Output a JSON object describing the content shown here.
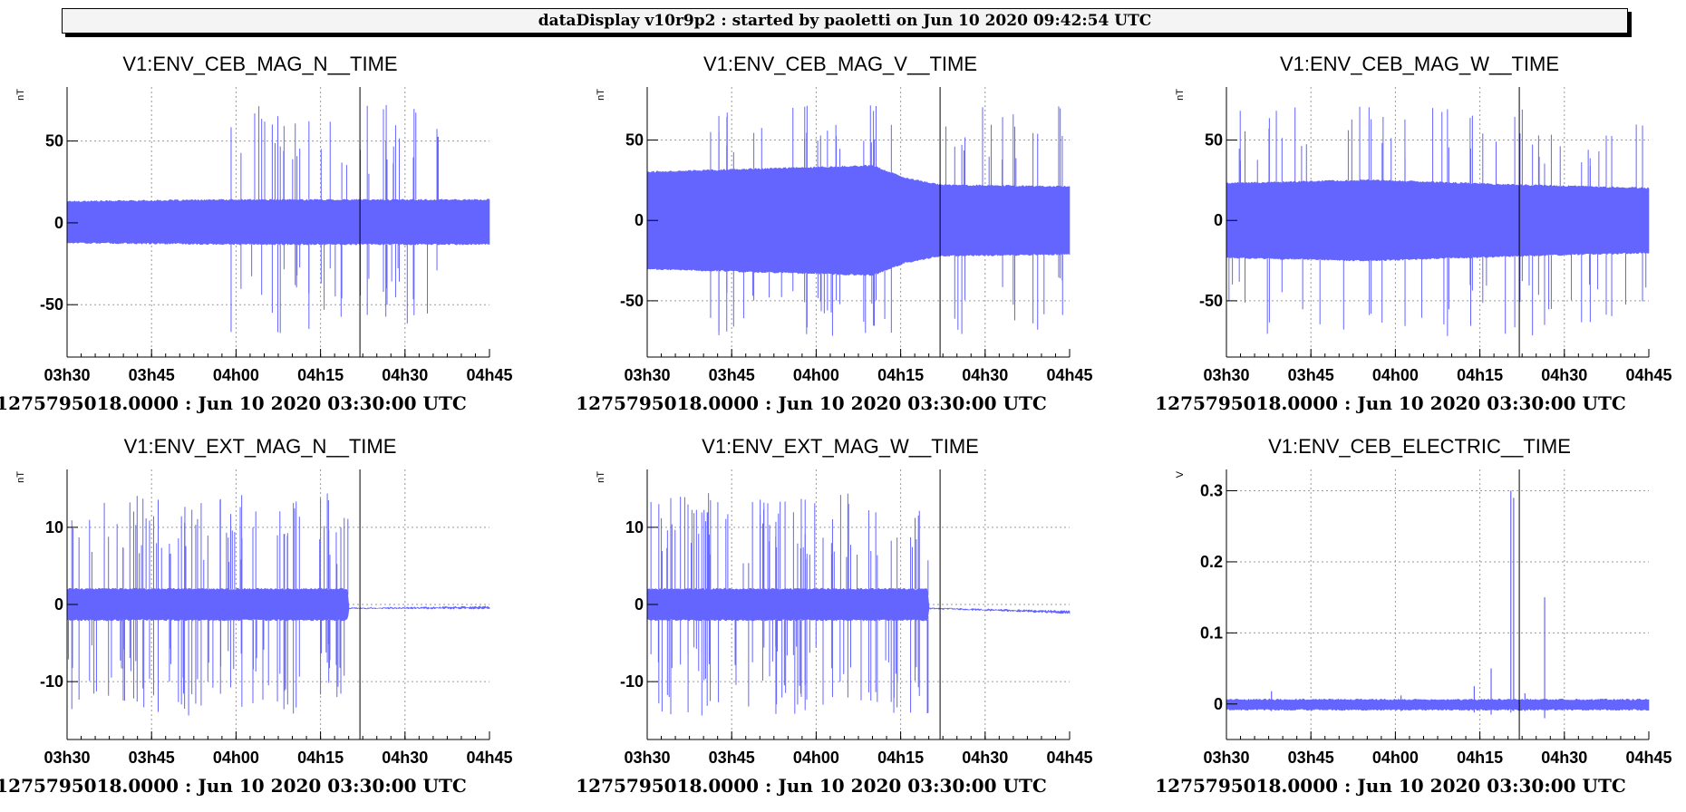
{
  "header": {
    "title": "dataDisplay v10r9p2 : started by paoletti on Jun 10 2020 09:42:54 UTC"
  },
  "colors": {
    "trace": "#6464ff",
    "cursor": "#000000",
    "grid": "#9a9a9a"
  },
  "chart_data": [
    {
      "type": "line",
      "title": "V1:ENV_CEB_MAG_N__TIME",
      "ylabel": "nT",
      "xlabel": "1275795018.0000 : Jun 10 2020 03:30:00 UTC",
      "x_ticks": [
        "03h30",
        "03h45",
        "04h00",
        "04h15",
        "04h30",
        "04h45"
      ],
      "xlim_minutes": [
        0,
        75
      ],
      "ylim": [
        -82,
        83
      ],
      "y_ticks": [
        {
          "v": 50,
          "label": "50"
        },
        {
          "v": 0,
          "label": "0"
        },
        {
          "v": -50,
          "label": "-50"
        }
      ],
      "grid": true,
      "cursor_minute": 52,
      "envelope_minutes": [
        0,
        30,
        52,
        75
      ],
      "envelope_hi": [
        13,
        14,
        14,
        14
      ],
      "envelope_lo": [
        -12,
        -13,
        -13,
        -13
      ],
      "spikes": [
        {
          "from_minute": 29,
          "to_minute": 66,
          "count": 55,
          "max_hi": 72,
          "max_lo": -68
        }
      ]
    },
    {
      "type": "line",
      "title": "V1:ENV_CEB_MAG_V__TIME",
      "ylabel": "nT",
      "xlabel": "1275795018.0000 : Jun 10 2020 03:30:00 UTC",
      "x_ticks": [
        "03h30",
        "03h45",
        "04h00",
        "04h15",
        "04h30",
        "04h45"
      ],
      "xlim_minutes": [
        0,
        75
      ],
      "ylim": [
        -85,
        83
      ],
      "y_ticks": [
        {
          "v": 50,
          "label": "50"
        },
        {
          "v": 0,
          "label": "0"
        },
        {
          "v": -50,
          "label": "-50"
        }
      ],
      "grid": true,
      "cursor_minute": 52,
      "envelope_minutes": [
        0,
        20,
        40,
        46,
        52,
        75
      ],
      "envelope_hi": [
        30,
        32,
        34,
        26,
        22,
        21
      ],
      "envelope_lo": [
        -30,
        -32,
        -34,
        -26,
        -22,
        -21
      ],
      "spikes": [
        {
          "from_minute": 10,
          "to_minute": 75,
          "count": 75,
          "max_hi": 72,
          "max_lo": -72
        }
      ]
    },
    {
      "type": "line",
      "title": "V1:ENV_CEB_MAG_W__TIME",
      "ylabel": "nT",
      "xlabel": "1275795018.0000 : Jun 10 2020 03:30:00 UTC",
      "x_ticks": [
        "03h30",
        "03h45",
        "04h00",
        "04h15",
        "04h30",
        "04h45"
      ],
      "xlim_minutes": [
        0,
        75
      ],
      "ylim": [
        -85,
        83
      ],
      "y_ticks": [
        {
          "v": 50,
          "label": "50"
        },
        {
          "v": 0,
          "label": "0"
        },
        {
          "v": -50,
          "label": "-50"
        }
      ],
      "grid": true,
      "cursor_minute": 52,
      "envelope_minutes": [
        0,
        25,
        52,
        75
      ],
      "envelope_hi": [
        23,
        25,
        22,
        20
      ],
      "envelope_lo": [
        -23,
        -25,
        -22,
        -20
      ],
      "spikes": [
        {
          "from_minute": 0,
          "to_minute": 75,
          "count": 80,
          "max_hi": 72,
          "max_lo": -72
        }
      ]
    },
    {
      "type": "line",
      "title": "V1:ENV_EXT_MAG_N__TIME",
      "ylabel": "nT",
      "xlabel": "1275795018.0000 : Jun 10 2020 03:30:00 UTC",
      "x_ticks": [
        "03h30",
        "03h45",
        "04h00",
        "04h15",
        "04h30",
        "04h45"
      ],
      "xlim_minutes": [
        0,
        75
      ],
      "ylim": [
        -17.5,
        17.5
      ],
      "y_ticks": [
        {
          "v": 10,
          "label": "10"
        },
        {
          "v": 0,
          "label": "0"
        },
        {
          "v": -10,
          "label": "-10"
        }
      ],
      "grid": true,
      "cursor_minute": 52,
      "envelope_minutes": [
        0,
        49.8,
        50,
        75
      ],
      "envelope_hi": [
        2,
        2,
        -0.5,
        -0.3
      ],
      "envelope_lo": [
        -2,
        -2,
        -0.5,
        -0.5
      ],
      "spikes": [
        {
          "from_minute": 0,
          "to_minute": 50,
          "count": 130,
          "max_hi": 14.5,
          "max_lo": -14.5
        }
      ]
    },
    {
      "type": "line",
      "title": "V1:ENV_EXT_MAG_W__TIME",
      "ylabel": "nT",
      "xlabel": "1275795018.0000 : Jun 10 2020 03:30:00 UTC",
      "x_ticks": [
        "03h30",
        "03h45",
        "04h00",
        "04h15",
        "04h30",
        "04h45"
      ],
      "xlim_minutes": [
        0,
        75
      ],
      "ylim": [
        -17.5,
        17.5
      ],
      "y_ticks": [
        {
          "v": 10,
          "label": "10"
        },
        {
          "v": 0,
          "label": "0"
        },
        {
          "v": -10,
          "label": "-10"
        }
      ],
      "grid": true,
      "cursor_minute": 52,
      "envelope_minutes": [
        0,
        49.8,
        50,
        75
      ],
      "envelope_hi": [
        2,
        2,
        -0.5,
        -0.9
      ],
      "envelope_lo": [
        -2,
        -2,
        -0.5,
        -1.1
      ],
      "spikes": [
        {
          "from_minute": 0,
          "to_minute": 50,
          "count": 130,
          "max_hi": 14.5,
          "max_lo": -14.5
        }
      ]
    },
    {
      "type": "line",
      "title": "V1:ENV_CEB_ELECTRIC__TIME",
      "ylabel": "V",
      "xlabel": "1275795018.0000 : Jun 10 2020 03:30:00 UTC",
      "x_ticks": [
        "03h30",
        "03h45",
        "04h00",
        "04h15",
        "04h30",
        "04h45"
      ],
      "xlim_minutes": [
        0,
        75
      ],
      "ylim": [
        -0.05,
        0.33
      ],
      "y_ticks": [
        {
          "v": 0.3,
          "label": "0.3"
        },
        {
          "v": 0.2,
          "label": "0.2"
        },
        {
          "v": 0.1,
          "label": "0.1"
        },
        {
          "v": 0,
          "label": "0"
        }
      ],
      "grid": true,
      "cursor_minute": 52,
      "envelope_minutes": [
        0,
        75
      ],
      "envelope_hi": [
        0.006,
        0.006
      ],
      "envelope_lo": [
        -0.008,
        -0.008
      ],
      "spike_list": [
        {
          "minute": 8,
          "hi": 0.018,
          "lo": -0.01
        },
        {
          "minute": 31,
          "hi": 0.012,
          "lo": -0.01
        },
        {
          "minute": 44,
          "hi": 0.025,
          "lo": -0.012
        },
        {
          "minute": 47,
          "hi": 0.05,
          "lo": -0.015
        },
        {
          "minute": 50.5,
          "hi": 0.3,
          "lo": -0.012
        },
        {
          "minute": 51,
          "hi": 0.29,
          "lo": -0.01
        },
        {
          "minute": 53,
          "hi": 0.015,
          "lo": -0.01
        },
        {
          "minute": 56.5,
          "hi": 0.15,
          "lo": -0.02
        }
      ]
    }
  ]
}
